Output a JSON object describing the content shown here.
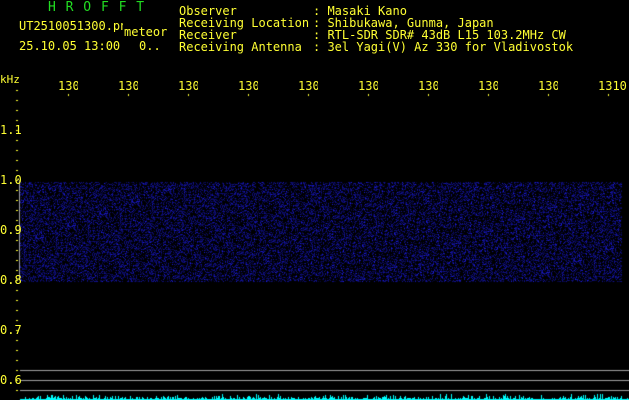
{
  "header": {
    "title": "H R O F F T",
    "filename": "UT2510051300.png",
    "label": "meteor",
    "datetime": "25.10.05 13:00",
    "count": "0.."
  },
  "info": [
    {
      "key": "Observer",
      "value": "Masaki Kano"
    },
    {
      "key": "Receiving Location",
      "value": "Shibukawa, Gunma, Japan"
    },
    {
      "key": "Receiver",
      "value": "RTL-SDR SDR# 43dB L15 103.2MHz CW"
    },
    {
      "key": "Receiving Antenna",
      "value": "3el Yagi(V) Az 330 for Vladivostok"
    }
  ],
  "axis": {
    "y_unit": "kHz",
    "x_labels": [
      "1301",
      "1302",
      "1303",
      "1304",
      "1305",
      "1306",
      "1307",
      "1308",
      "1309",
      "1310"
    ],
    "y_labels": [
      "1.1",
      "1.0",
      "0.9",
      "0.8",
      "0.7",
      "0.6"
    ]
  },
  "colors": {
    "text": "#ffff33",
    "title": "#22dd22",
    "noise": "#2020ff",
    "baseline": "#00ffff",
    "lines": "#a0a0a0"
  }
}
